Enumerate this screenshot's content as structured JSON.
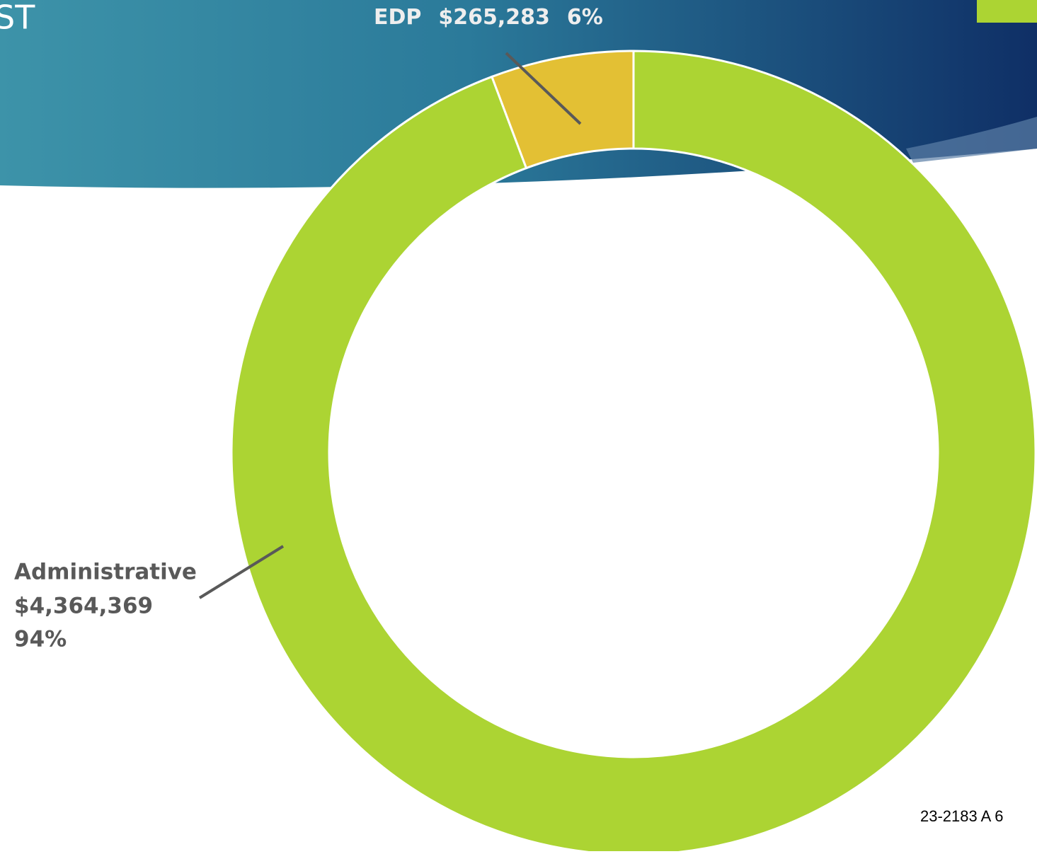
{
  "chart_data": {
    "type": "donut",
    "title": "ST",
    "categories": [
      "Administrative",
      "EDP"
    ],
    "values": [
      4364369,
      265283
    ],
    "value_labels": [
      "$4,364,369",
      "$265,283"
    ],
    "percent_labels": [
      "94%",
      "6%"
    ],
    "colors": [
      "#acd433",
      "#e3c034"
    ],
    "footer": "23-2183 A 6"
  }
}
